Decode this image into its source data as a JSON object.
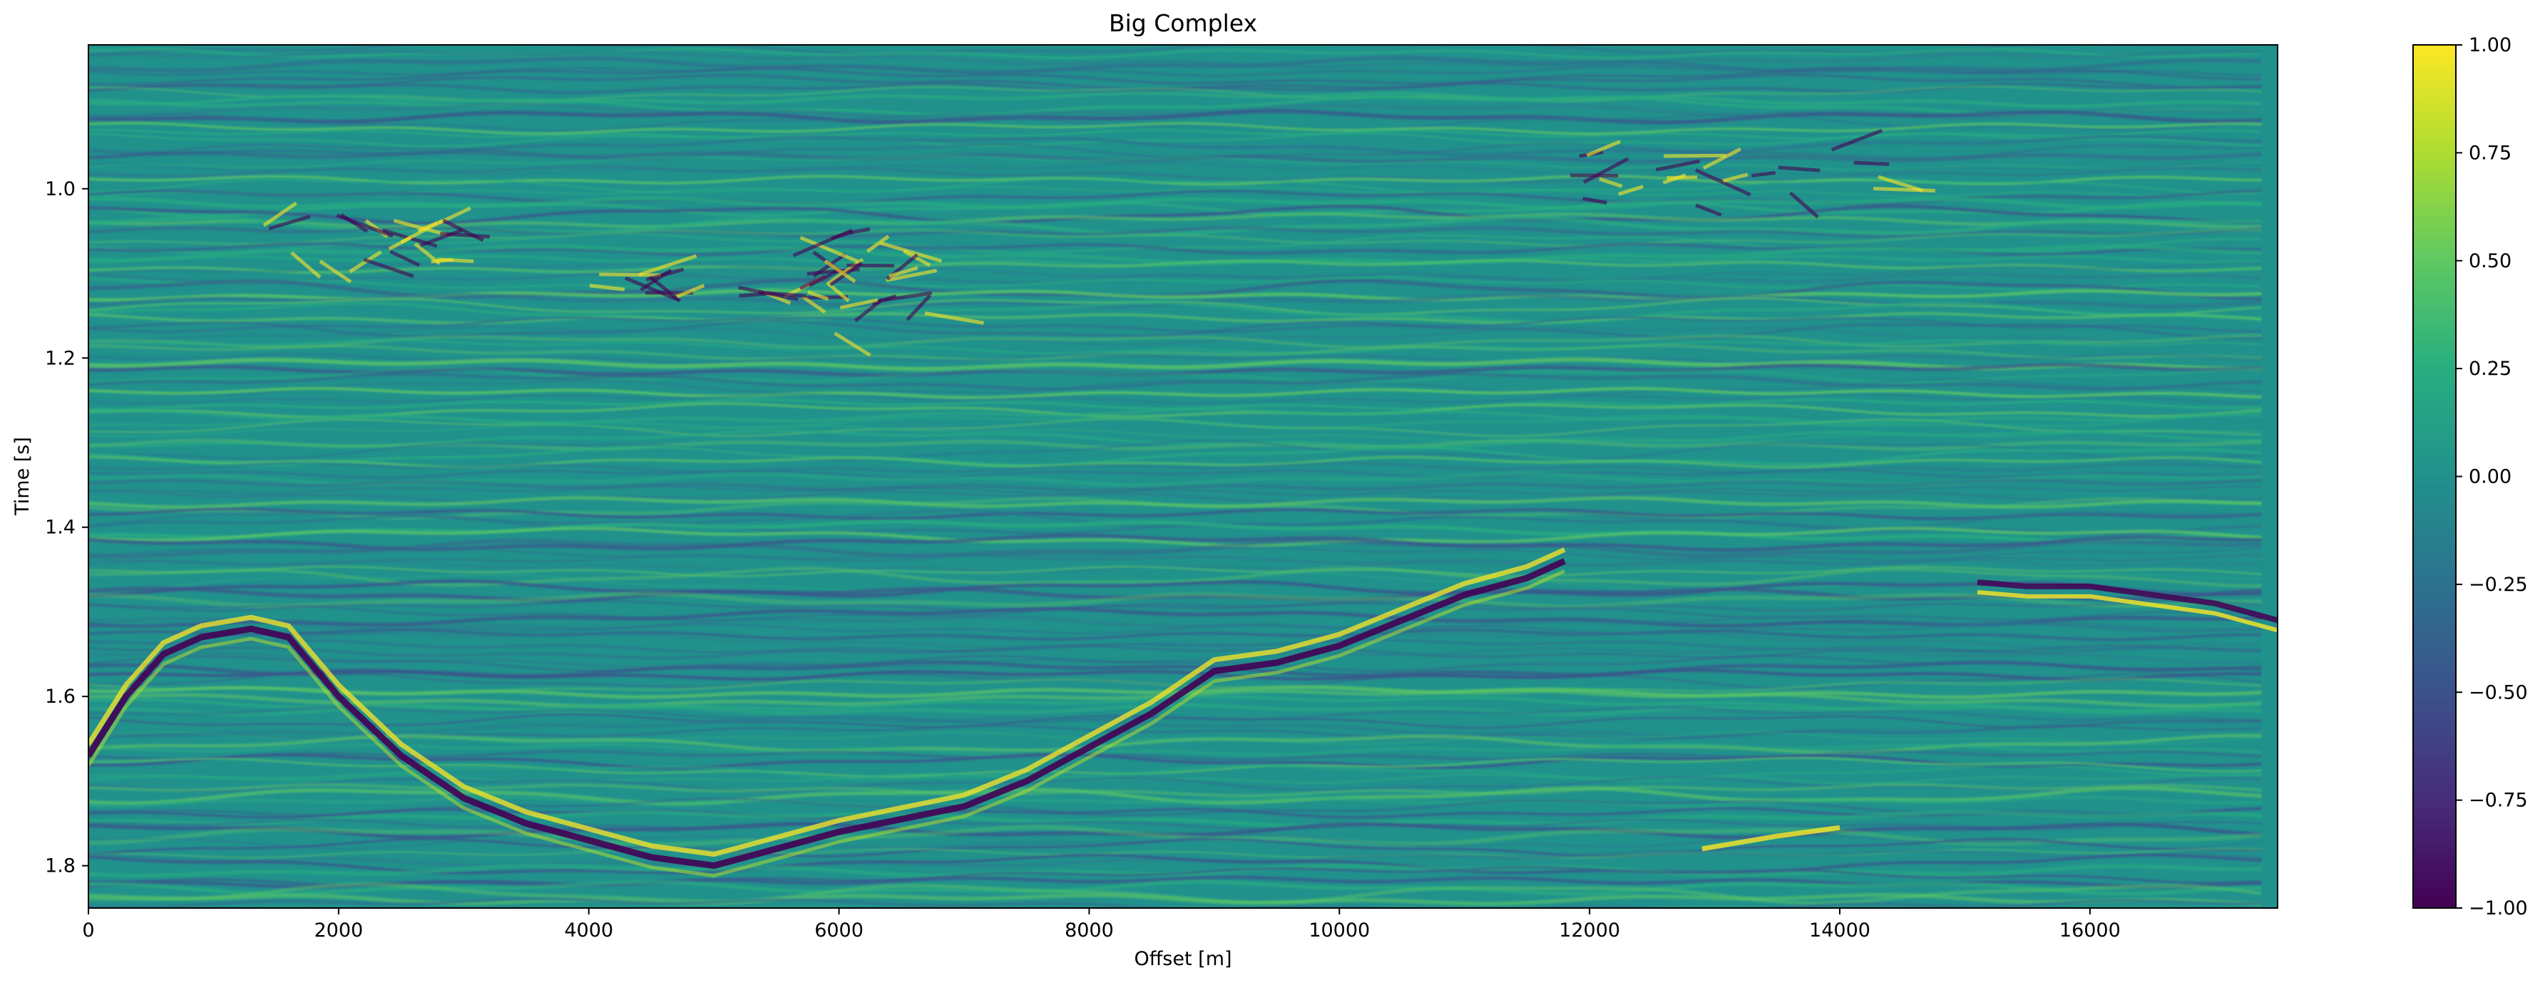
{
  "chart_data": [
    {
      "type": "heatmap",
      "title": "Big Complex",
      "xlabel": "Offset [m]",
      "ylabel": "Time [s]",
      "xlim": [
        0,
        17500
      ],
      "ylim": [
        1.85,
        0.83
      ],
      "y_inverted": true,
      "colormap": "viridis",
      "grid": false,
      "xticks": [
        0,
        2000,
        4000,
        6000,
        8000,
        10000,
        12000,
        14000,
        16000
      ],
      "yticks": [
        1.0,
        1.2,
        1.4,
        1.6,
        1.8
      ],
      "xtick_labels": [
        "0",
        "2000",
        "4000",
        "6000",
        "8000",
        "10000",
        "12000",
        "14000",
        "16000"
      ],
      "ytick_labels": [
        "1.0",
        "1.2",
        "1.4",
        "1.6",
        "1.8"
      ],
      "image_description": "Seismic section: wavy layered reflections; strong reflector forming a dome near offset 1300 m (t≈1.52 s), dipping to t≈1.80 s at ~5000 m, rising to t≈1.45 s past 10000 m; bright chaotic reflections around t≈1.0–1.15 s; flat event near t≈1.48 s at 15000–17500 m."
    },
    {
      "type": "colorbar",
      "range": [
        -1.0,
        1.0
      ],
      "ticks": [
        -1.0,
        -0.75,
        -0.5,
        -0.25,
        0.0,
        0.25,
        0.5,
        0.75,
        1.0
      ],
      "tick_labels": [
        "−1.00",
        "−0.75",
        "−0.50",
        "−0.25",
        "0.00",
        "0.25",
        "0.50",
        "0.75",
        "1.00"
      ],
      "colors": [
        "#440154",
        "#472c7a",
        "#3b528b",
        "#2c728e",
        "#21918c",
        "#28ae80",
        "#5ec962",
        "#addc30",
        "#fde725"
      ]
    }
  ]
}
